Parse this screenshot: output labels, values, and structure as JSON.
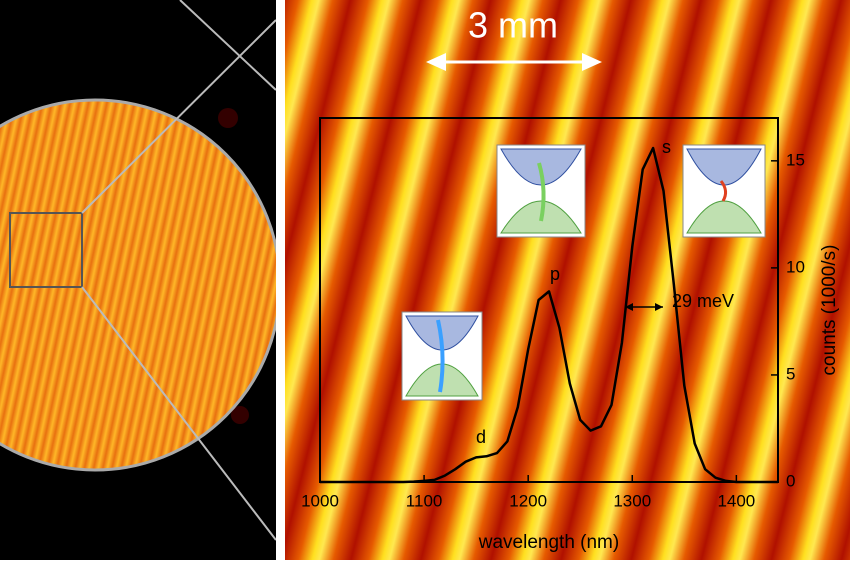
{
  "chart_data": {
    "type": "line",
    "x_label": "wavelength (nm)",
    "y_label": "counts (1000/s)",
    "scale_bar": "3 mm",
    "annotations": [
      "s",
      "p",
      "d",
      "29 meV"
    ],
    "x": [
      1000,
      1010,
      1020,
      1030,
      1040,
      1050,
      1060,
      1070,
      1080,
      1090,
      1100,
      1110,
      1120,
      1130,
      1140,
      1150,
      1160,
      1170,
      1180,
      1190,
      1200,
      1210,
      1220,
      1230,
      1240,
      1250,
      1260,
      1270,
      1280,
      1290,
      1300,
      1310,
      1320,
      1330,
      1340,
      1350,
      1360,
      1370,
      1380,
      1390,
      1400,
      1410,
      1420,
      1430,
      1440
    ],
    "series": [
      {
        "color": "#000000",
        "values": [
          0,
          0,
          0,
          0,
          0,
          0,
          0,
          0,
          0,
          0.02,
          0.05,
          0.1,
          0.3,
          0.6,
          0.95,
          1.15,
          1.2,
          1.35,
          1.9,
          3.5,
          6.2,
          8.5,
          8.9,
          7.2,
          4.6,
          2.9,
          2.4,
          2.6,
          3.6,
          6.5,
          11.0,
          14.6,
          15.6,
          13.6,
          9.2,
          4.5,
          1.8,
          0.6,
          0.2,
          0.05,
          0,
          0,
          0,
          0,
          0
        ]
      }
    ],
    "xlim": [
      1000,
      1440
    ],
    "xticks": [
      1000,
      1100,
      1200,
      1300,
      1400
    ],
    "ylim": [
      0,
      17
    ],
    "yticks": [
      0,
      5,
      10,
      15
    ],
    "y_axis_side": "right",
    "grid": false
  }
}
